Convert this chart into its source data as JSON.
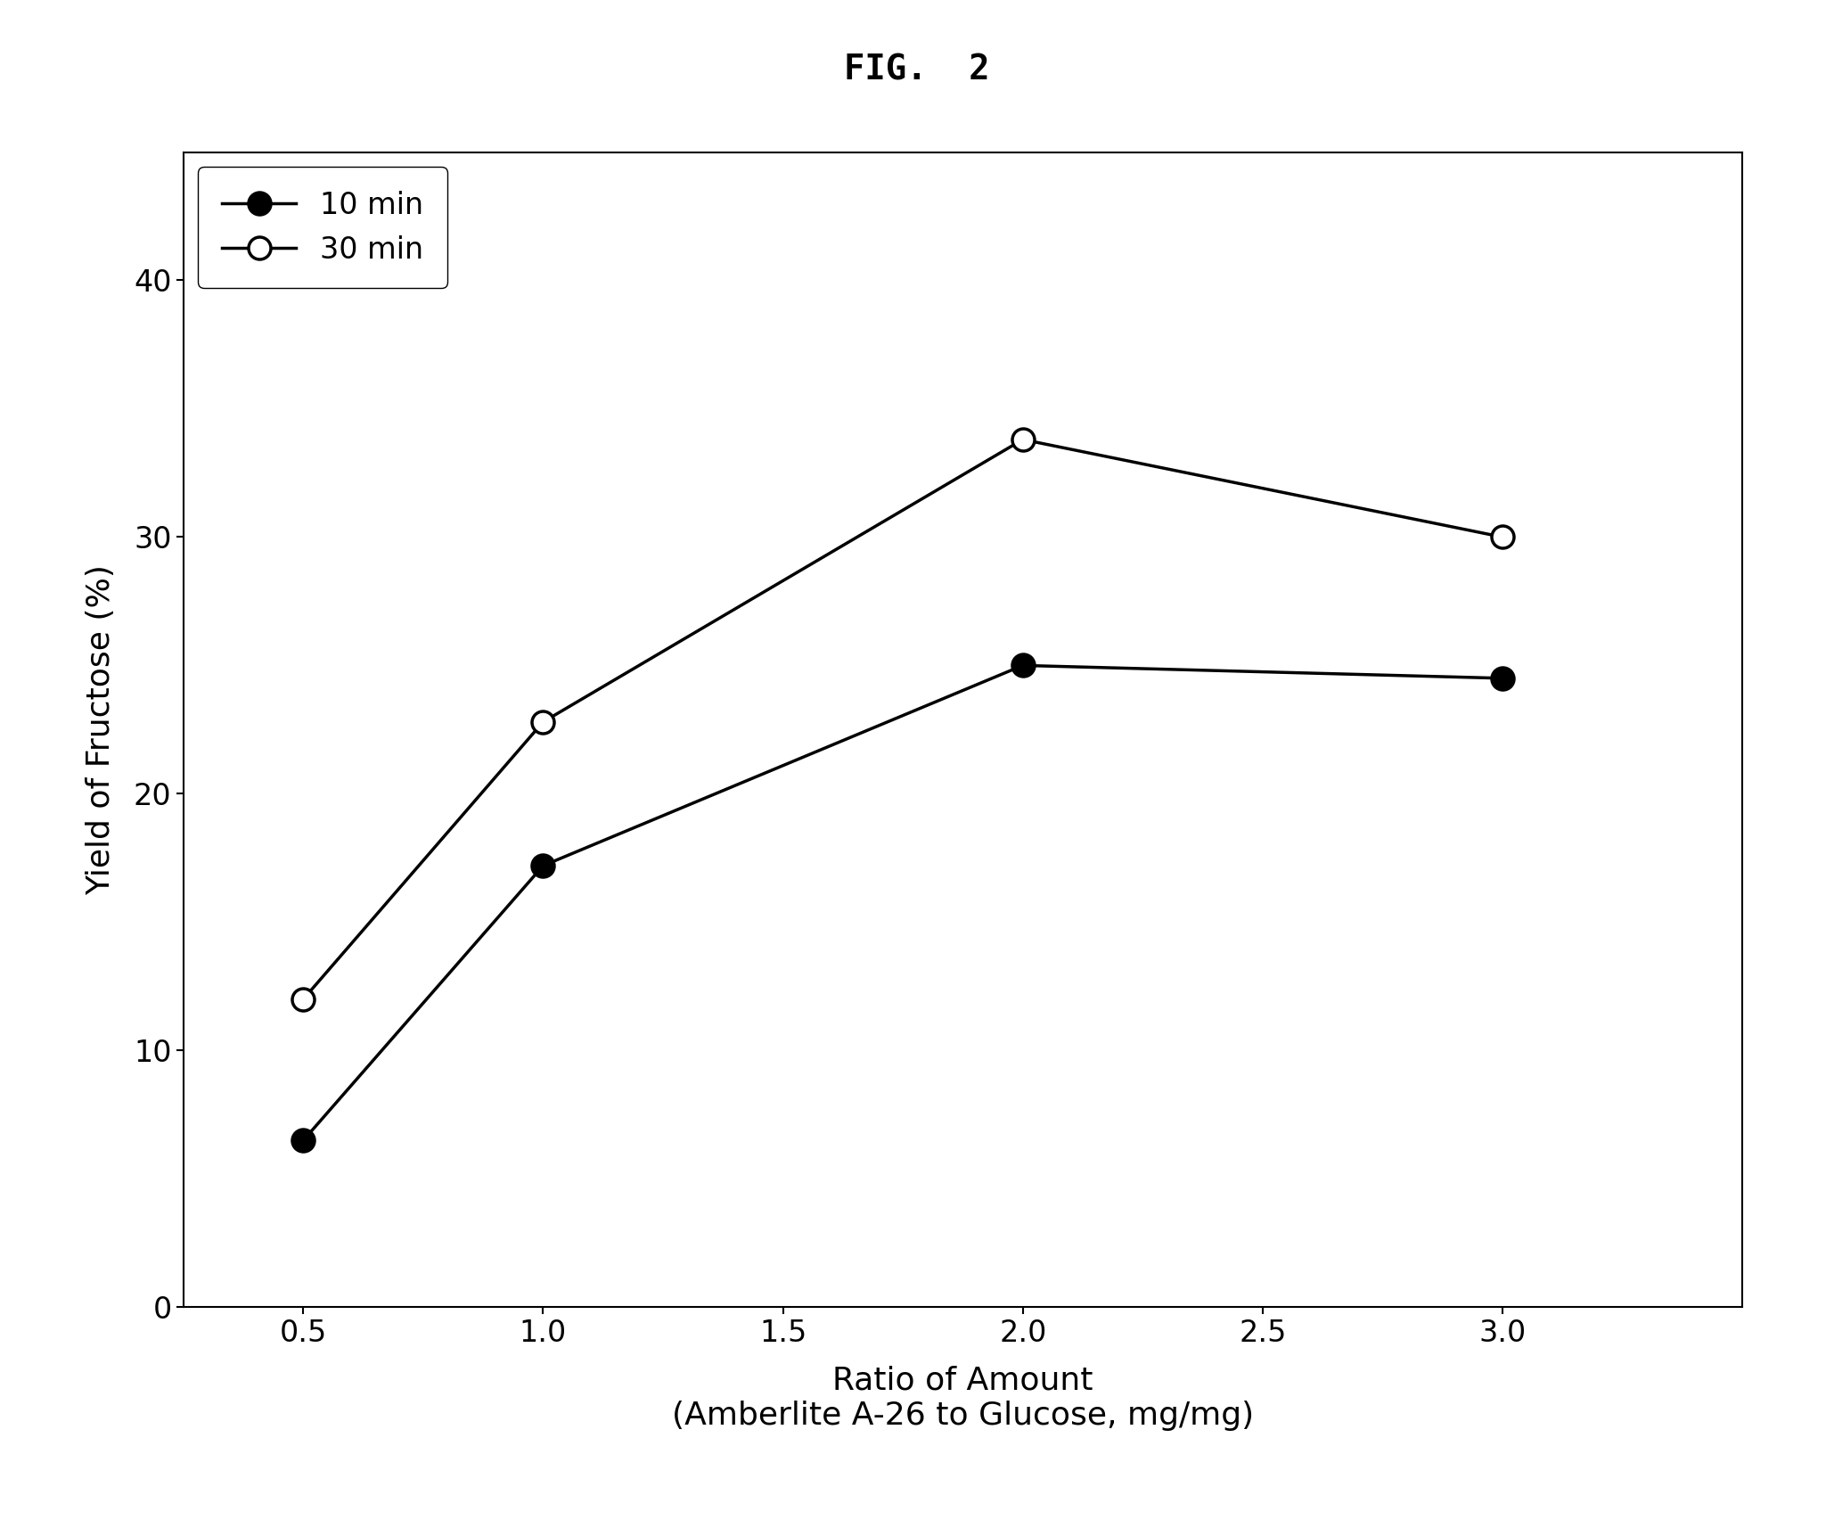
{
  "title": "FIG.  2",
  "xlabel_line1": "Ratio of Amount",
  "xlabel_line2": "(Amberlite A-26 to Glucose, mg/mg)",
  "ylabel": "Yield of Fructose (%)",
  "xlim": [
    0.25,
    3.5
  ],
  "ylim": [
    0,
    45
  ],
  "xticks": [
    0.5,
    1.0,
    1.5,
    2.0,
    2.5,
    3.0
  ],
  "yticks": [
    0,
    10,
    20,
    30,
    40
  ],
  "series": [
    {
      "label": "10 min",
      "x": [
        0.5,
        1.0,
        2.0,
        3.0
      ],
      "y": [
        6.5,
        17.2,
        25.0,
        24.5
      ],
      "marker": "o",
      "markerfacecolor": "#000000",
      "markeredgecolor": "#000000",
      "color": "#000000",
      "markersize": 18
    },
    {
      "label": "30 min",
      "x": [
        0.5,
        1.0,
        2.0,
        3.0
      ],
      "y": [
        12.0,
        22.8,
        33.8,
        30.0
      ],
      "marker": "o",
      "markerfacecolor": "#ffffff",
      "markeredgecolor": "#000000",
      "color": "#000000",
      "markersize": 18
    }
  ],
  "legend_fontsize": 24,
  "axis_fontsize": 26,
  "tick_fontsize": 24,
  "title_fontsize": 28,
  "linewidth": 2.5,
  "markeredgewidth": 2.5,
  "background_color": "#ffffff",
  "figsize": [
    20.58,
    17.05
  ],
  "dpi": 100
}
